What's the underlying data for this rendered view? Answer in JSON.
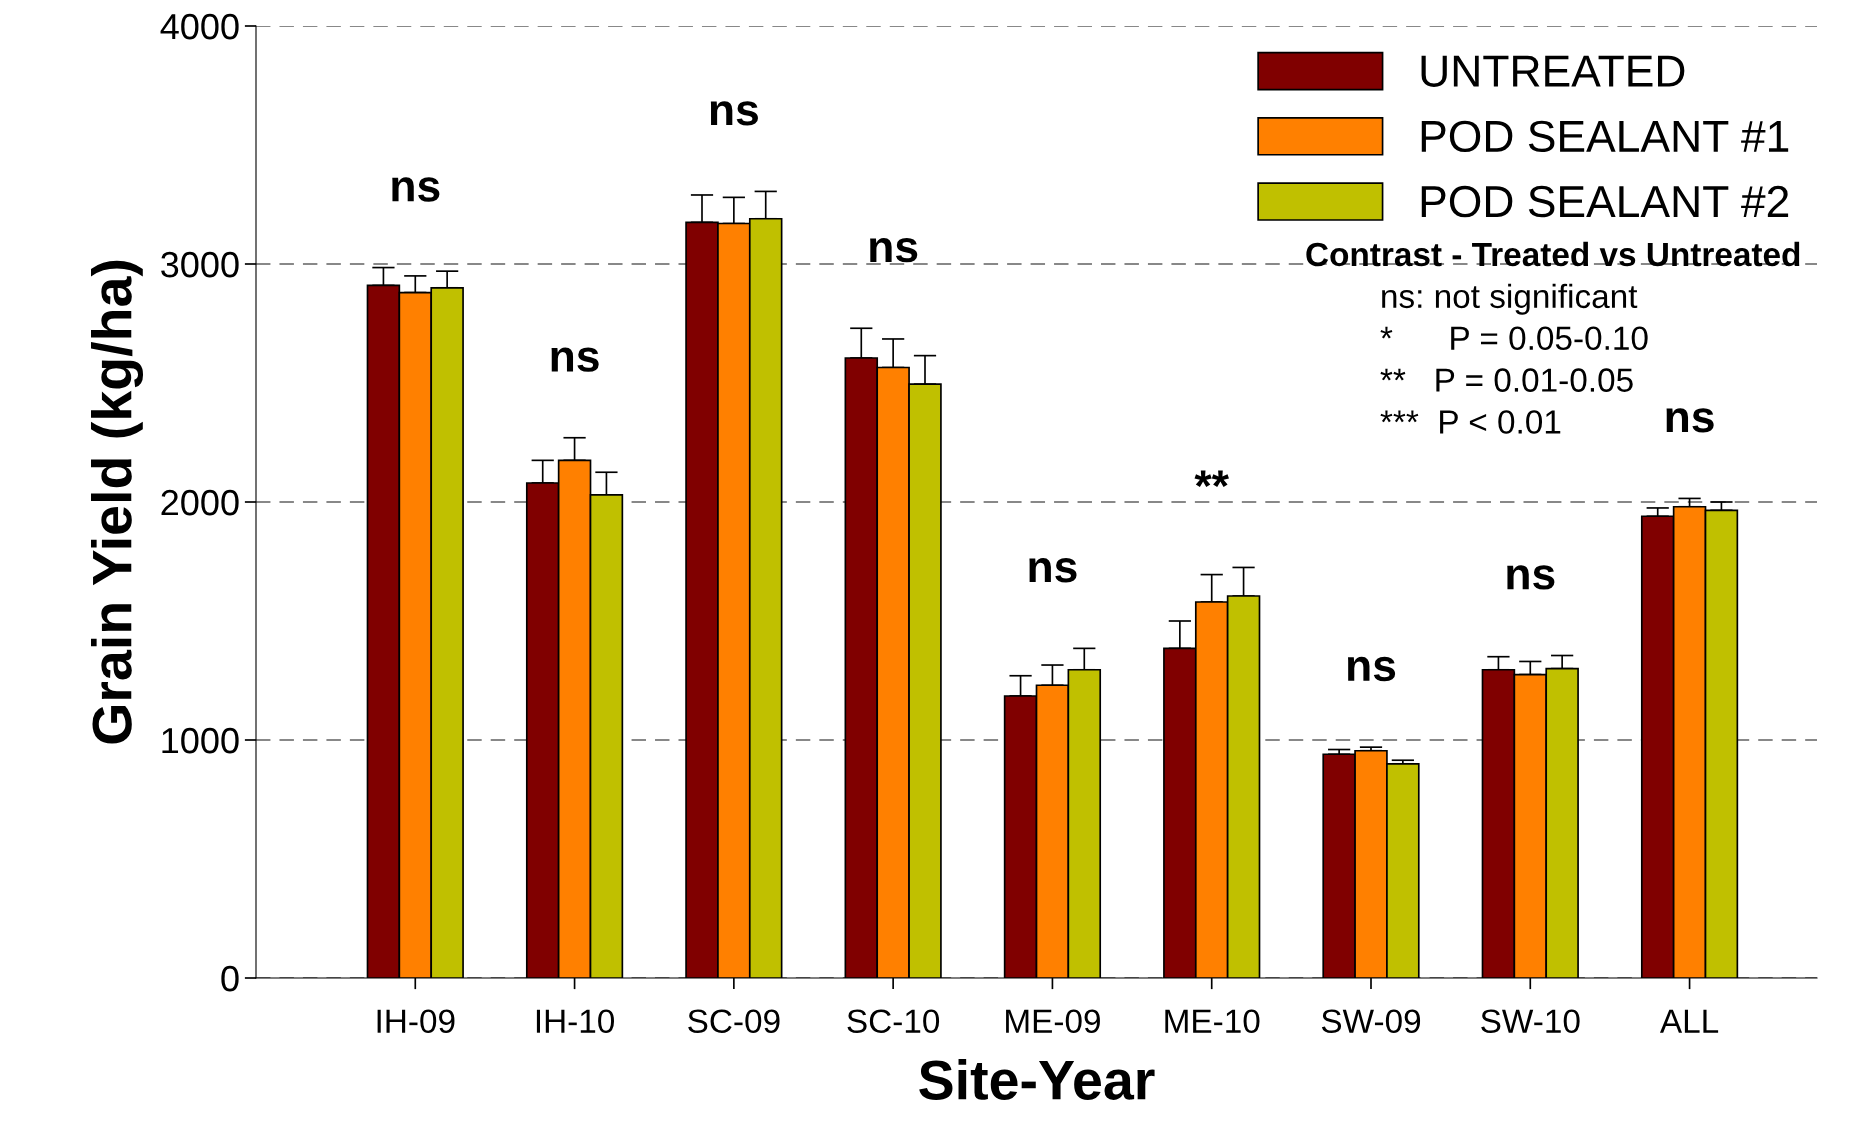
{
  "chart_data": {
    "type": "bar",
    "xlabel": "Site-Year",
    "ylabel": "Grain Yield (kg/ha)",
    "categories": [
      "IH-09",
      "IH-10",
      "SC-09",
      "SC-10",
      "ME-09",
      "ME-10",
      "SW-09",
      "SW-10",
      "ALL"
    ],
    "series": [
      {
        "name": "UNTREATED",
        "color": "#800000",
        "values": [
          2910,
          2080,
          3175,
          2605,
          1185,
          1385,
          940,
          1295,
          1940
        ],
        "errors": [
          [
            2910,
            2985
          ],
          [
            2080,
            2175
          ],
          [
            3175,
            3290
          ],
          [
            2605,
            2730
          ],
          [
            1185,
            1270
          ],
          [
            1385,
            1500
          ],
          [
            940,
            960
          ],
          [
            1295,
            1350
          ],
          [
            1940,
            1975
          ]
        ]
      },
      {
        "name": "POD SEALANT #1",
        "color": "#ff8000",
        "values": [
          2880,
          2175,
          3170,
          2565,
          1230,
          1580,
          955,
          1275,
          1980
        ],
        "errors": [
          [
            2880,
            2950
          ],
          [
            2175,
            2270
          ],
          [
            3170,
            3280
          ],
          [
            2565,
            2685
          ],
          [
            1230,
            1315
          ],
          [
            1580,
            1695
          ],
          [
            955,
            970
          ],
          [
            1275,
            1330
          ],
          [
            1980,
            2015
          ]
        ]
      },
      {
        "name": "POD SEALANT #2",
        "color": "#c0c000",
        "values": [
          2900,
          2030,
          3190,
          2495,
          1295,
          1605,
          900,
          1300,
          1965
        ],
        "errors": [
          [
            2900,
            2970
          ],
          [
            2030,
            2125
          ],
          [
            3190,
            3305
          ],
          [
            2495,
            2615
          ],
          [
            1295,
            1385
          ],
          [
            1605,
            1725
          ],
          [
            900,
            915
          ],
          [
            1300,
            1355
          ],
          [
            1965,
            2000
          ]
        ]
      }
    ],
    "ylim": [
      0,
      4000
    ],
    "yticks": [
      0,
      1000,
      2000,
      3000,
      4000
    ],
    "grid": "y",
    "legend": "top right",
    "annotations": [
      "ns",
      "ns",
      "ns",
      "ns",
      "ns",
      "**",
      "ns",
      "ns",
      "ns",
      "Contrast - Treated vs Untreated",
      "ns: not significant",
      "*      P = 0.05-0.10",
      "**   P = 0.01-0.05",
      "***  P < 0.01"
    ]
  }
}
